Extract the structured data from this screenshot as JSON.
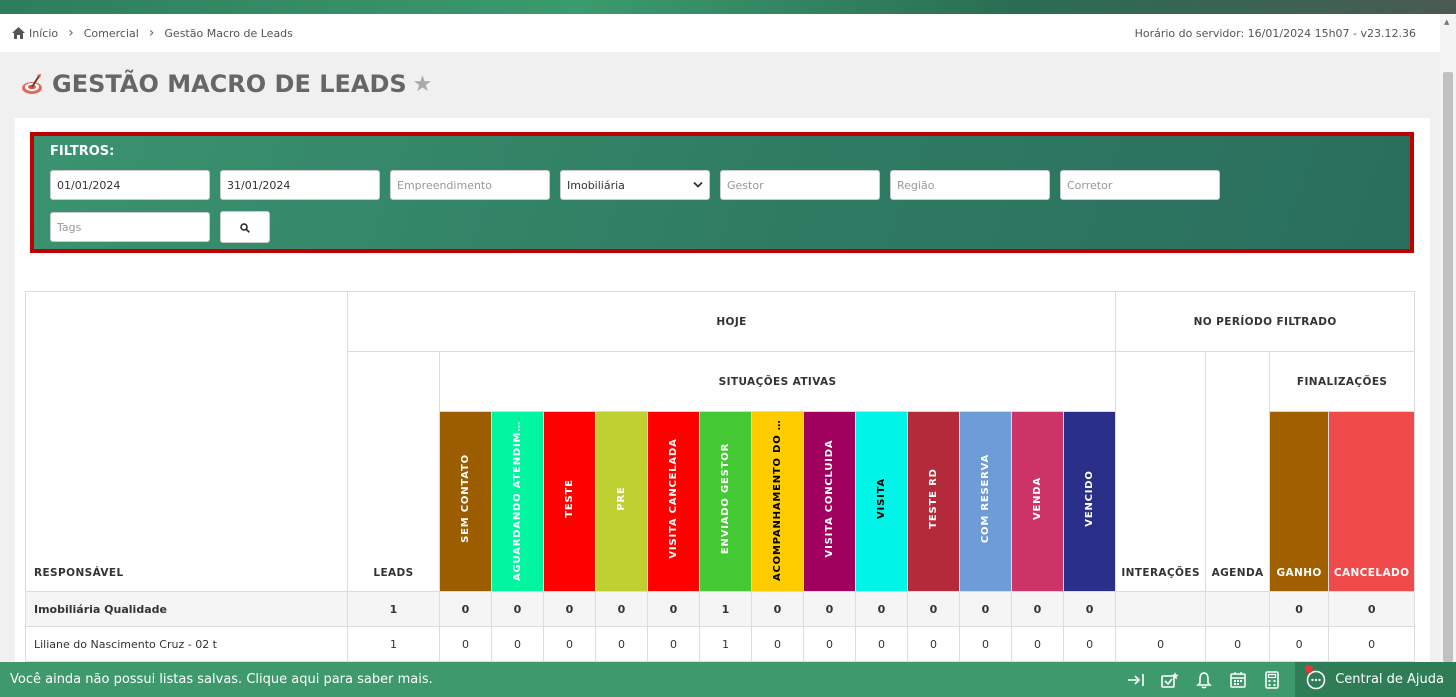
{
  "breadcrumb": {
    "home": "Início",
    "commercial": "Comercial",
    "current": "Gestão Macro de Leads"
  },
  "server_time": "Horário do servidor: 16/01/2024 15h07 - v23.12.36",
  "page_title": "GESTÃO MACRO DE LEADS",
  "filters": {
    "label": "FILTROS:",
    "date_start": "01/01/2024",
    "date_end": "31/01/2024",
    "empreendimento_ph": "Empreendimento",
    "imobiliaria_value": "Imobiliária",
    "gestor_ph": "Gestor",
    "regiao_ph": "Região",
    "corretor_ph": "Corretor",
    "tags_ph": "Tags"
  },
  "table": {
    "responsavel": "RESPONSÁVEL",
    "hoje": "HOJE",
    "periodo": "NO PERÍODO FILTRADO",
    "leads": "LEADS",
    "situacoes": "SITUAÇÕES ATIVAS",
    "interacoes": "INTERAÇÕES",
    "agenda": "AGENDA",
    "finalizacoes": "FINALIZAÇÕES",
    "status_cols": [
      {
        "label": "SEM CONTATO",
        "color": "#9c5c00",
        "text": "#ffffff"
      },
      {
        "label": "AGUARDANDO ATENDIMENTO",
        "color": "#00f5a0",
        "text": "#ffffff"
      },
      {
        "label": "TESTE",
        "color": "#ff0000",
        "text": "#ffffff"
      },
      {
        "label": "PRE",
        "color": "#bfd033",
        "text": "#ffffff"
      },
      {
        "label": "VISITA CANCELADA",
        "color": "#ff0000",
        "text": "#ffffff"
      },
      {
        "label": "ENVIADO GESTOR",
        "color": "#44c833",
        "text": "#ffffff"
      },
      {
        "label": "ACOMPANHAMENTO DO CORRETOR",
        "color": "#ffcc00",
        "text": "#000000"
      },
      {
        "label": "VISITA CONCLUÍDA",
        "color": "#a0005e",
        "text": "#ffffff"
      },
      {
        "label": "VISITA",
        "color": "#00f5e8",
        "text": "#000000"
      },
      {
        "label": "TESTE RD",
        "color": "#b52a3a",
        "text": "#ffffff"
      },
      {
        "label": "COM RESERVA",
        "color": "#6e9cd6",
        "text": "#ffffff"
      },
      {
        "label": "VENDA",
        "color": "#cc3366",
        "text": "#ffffff"
      },
      {
        "label": "VENCIDO",
        "color": "#2a2f8a",
        "text": "#ffffff"
      }
    ],
    "final_cols": [
      {
        "label": "GANHO",
        "color": "#a06000",
        "text": "#ffffff"
      },
      {
        "label": "CANCELADO",
        "color": "#f04a4a",
        "text": "#ffffff"
      }
    ],
    "rows": [
      {
        "name": "Imobiliária Qualidade",
        "bold": true,
        "leads": "1",
        "status": [
          "0",
          "0",
          "0",
          "0",
          "0",
          "1",
          "0",
          "0",
          "0",
          "0",
          "0",
          "0",
          "0"
        ],
        "interacoes": "",
        "agenda": "",
        "final": [
          "0",
          "0"
        ]
      },
      {
        "name": "Liliane do Nascimento Cruz - 02 t",
        "bold": false,
        "leads": "1",
        "status": [
          "0",
          "0",
          "0",
          "0",
          "0",
          "1",
          "0",
          "0",
          "0",
          "0",
          "0",
          "0",
          "0"
        ],
        "interacoes": "0",
        "agenda": "0",
        "final": [
          "0",
          "0"
        ]
      }
    ]
  },
  "footer": {
    "message": "Você ainda não possui listas salvas. Clique aqui para saber mais.",
    "help": "Central de Ajuda"
  },
  "icons": {
    "home": "home-icon",
    "star": "star-icon",
    "search": "search-icon",
    "exit": "exit-icon",
    "shortcuts": "shortcuts-icon",
    "bell": "bell-icon",
    "calendar": "calendar-icon",
    "calculator": "calculator-icon",
    "chat": "chat-icon"
  }
}
